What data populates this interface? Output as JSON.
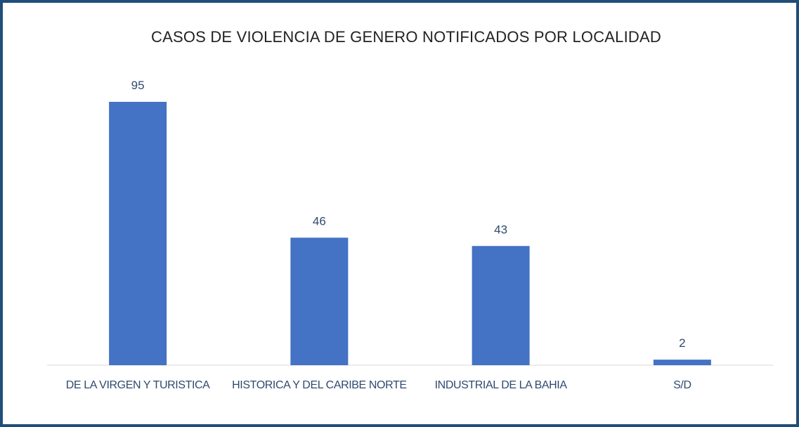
{
  "chart_data": {
    "type": "bar",
    "title": "CASOS DE VIOLENCIA DE GENERO NOTIFICADOS  POR LOCALIDAD",
    "categories": [
      "DE LA VIRGEN Y TURISTICA",
      "HISTORICA Y DEL CARIBE NORTE",
      "INDUSTRIAL DE LA BAHIA",
      "S/D"
    ],
    "values": [
      95,
      46,
      43,
      2
    ],
    "color": "#4472c4"
  }
}
